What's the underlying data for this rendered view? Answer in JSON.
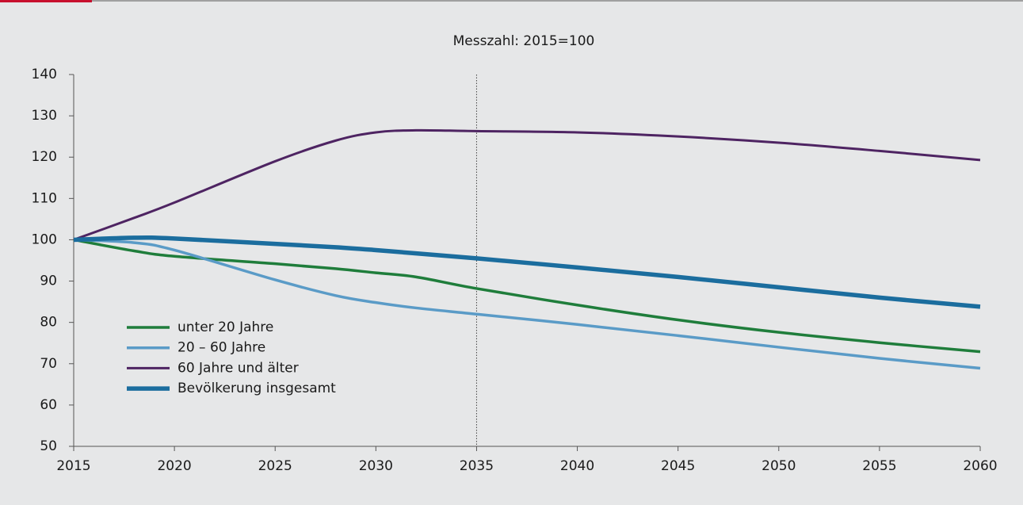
{
  "chart_data": {
    "type": "line",
    "title": "Messzahl: 2015=100",
    "x": [
      2015,
      2018,
      2020,
      2025,
      2028,
      2030,
      2032,
      2035,
      2040,
      2045,
      2050,
      2055,
      2060
    ],
    "series": [
      {
        "name": "unter 20 Jahre",
        "color": "#1f7d3b",
        "values": [
          100,
          97.3,
          96,
          94.2,
          93,
          92,
          91,
          88.2,
          84.2,
          80.6,
          77.6,
          75.1,
          72.9
        ]
      },
      {
        "name": "20 – 60 Jahre",
        "color": "#5a9bc7",
        "values": [
          100,
          99.3,
          97.5,
          90.3,
          86.5,
          84.8,
          83.5,
          82,
          79.5,
          76.8,
          74,
          71.3,
          68.9
        ]
      },
      {
        "name": "60 Jahre und älter",
        "color": "#4e2462",
        "values": [
          100,
          105.3,
          109,
          119,
          124,
          126,
          126.5,
          126.3,
          126,
          125,
          123.5,
          121.5,
          119.3
        ]
      },
      {
        "name": "Bevölkerung insgesamt",
        "color": "#1b6d9e",
        "values": [
          100,
          100.5,
          100.3,
          99,
          98.2,
          97.5,
          96.7,
          95.5,
          93.3,
          91,
          88.5,
          86,
          83.8
        ]
      }
    ],
    "xlim": [
      2015,
      2060
    ],
    "xticks": [
      2015,
      2020,
      2025,
      2030,
      2035,
      2040,
      2045,
      2050,
      2055,
      2060
    ],
    "ylim": [
      50,
      140
    ],
    "yticks": [
      50,
      60,
      70,
      80,
      90,
      100,
      110,
      120,
      130,
      140
    ],
    "vline": 2035,
    "legend": "lower left",
    "grid": false
  }
}
